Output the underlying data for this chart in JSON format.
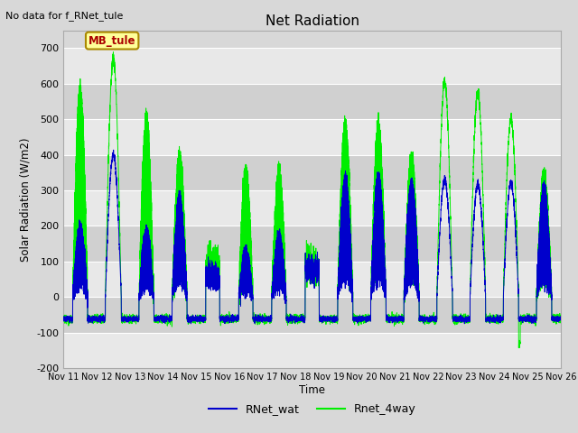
{
  "title": "Net Radiation",
  "topleft_text": "No data for f_RNet_tule",
  "ylabel": "Solar Radiation (W/m2)",
  "xlabel": "Time",
  "ylim": [
    -200,
    750
  ],
  "yticks": [
    -200,
    -100,
    0,
    100,
    200,
    300,
    400,
    500,
    600,
    700
  ],
  "xtick_labels": [
    "Nov 11",
    "Nov 12",
    "Nov 13",
    "Nov 14",
    "Nov 15",
    "Nov 16",
    "Nov 17",
    "Nov 18",
    "Nov 19",
    "Nov 20",
    "Nov 21",
    "Nov 22",
    "Nov 23",
    "Nov 24",
    "Nov 25",
    "Nov 26"
  ],
  "background_color": "#d8d8d8",
  "plot_bg_color": "#d8d8d8",
  "line_color_blue": "#0000cc",
  "line_color_green": "#00ee00",
  "legend_entries": [
    "RNet_wat",
    "Rnet_4way"
  ],
  "annotation_box": "MB_tule",
  "annotation_color": "#aa0000",
  "annotation_bg": "#ffff99",
  "annotation_border": "#aa8800"
}
